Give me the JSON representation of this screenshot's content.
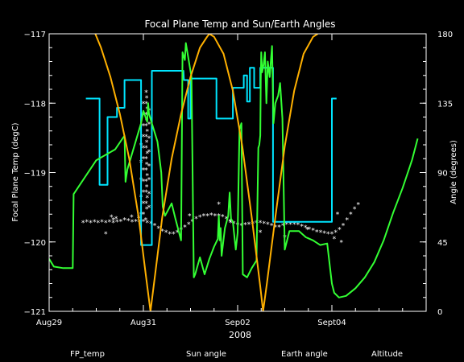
{
  "chart_data": {
    "type": "line",
    "title": "Focal Plane Temp and Sun/Earth Angles",
    "xlabel": "2008",
    "ylabel_left": "Focal Plane Temp (degC)",
    "ylabel_right": "Angle (degrees)",
    "x_unit": "days since Aug 29 00:00 (2008)",
    "xlim": [
      0,
      8
    ],
    "x_ticks": [
      {
        "x": 0,
        "label": "Aug29"
      },
      {
        "x": 2,
        "label": "Aug31"
      },
      {
        "x": 4,
        "label": "Sep02"
      },
      {
        "x": 6,
        "label": "Sept04"
      }
    ],
    "ylim_left": [
      -121,
      -117
    ],
    "y_ticks_left": [
      -121,
      -120,
      -119,
      -118,
      -117
    ],
    "ylim_right": [
      0,
      180
    ],
    "y_ticks_right": [
      0,
      45,
      90,
      135,
      180
    ],
    "grid": false,
    "legend_position": "bottom",
    "series": [
      {
        "name": "FP_temp",
        "color": "#ffffff",
        "axis": "left",
        "style": "markers",
        "points": [
          [
            0.72,
            -119.72
          ],
          [
            0.8,
            -119.71
          ],
          [
            0.88,
            -119.72
          ],
          [
            0.96,
            -119.71
          ],
          [
            1.04,
            -119.72
          ],
          [
            1.12,
            -119.71
          ],
          [
            1.2,
            -119.72
          ],
          [
            1.28,
            -119.71
          ],
          [
            1.36,
            -119.72
          ],
          [
            1.44,
            -119.71
          ],
          [
            1.52,
            -119.7
          ],
          [
            1.6,
            -119.68
          ],
          [
            1.68,
            -119.69
          ],
          [
            1.76,
            -119.71
          ],
          [
            1.84,
            -119.7
          ],
          [
            1.92,
            -119.71
          ],
          [
            2.0,
            -119.7
          ],
          [
            2.08,
            -119.72
          ],
          [
            2.16,
            -119.73
          ],
          [
            2.24,
            -119.76
          ],
          [
            2.32,
            -119.8
          ],
          [
            2.4,
            -119.84
          ],
          [
            2.48,
            -119.86
          ],
          [
            2.56,
            -119.88
          ],
          [
            2.64,
            -119.88
          ],
          [
            2.72,
            -119.86
          ],
          [
            2.8,
            -119.82
          ],
          [
            2.88,
            -119.78
          ],
          [
            2.96,
            -119.74
          ],
          [
            3.04,
            -119.7
          ],
          [
            3.12,
            -119.66
          ],
          [
            3.2,
            -119.64
          ],
          [
            3.28,
            -119.62
          ],
          [
            3.36,
            -119.62
          ],
          [
            3.44,
            -119.61
          ],
          [
            3.52,
            -119.62
          ],
          [
            3.6,
            -119.62
          ],
          [
            3.68,
            -119.63
          ],
          [
            3.76,
            -119.66
          ],
          [
            3.84,
            -119.7
          ],
          [
            3.92,
            -119.73
          ],
          [
            4.0,
            -119.75
          ],
          [
            4.08,
            -119.76
          ],
          [
            4.16,
            -119.75
          ],
          [
            4.24,
            -119.74
          ],
          [
            4.32,
            -119.73
          ],
          [
            4.4,
            -119.72
          ],
          [
            4.48,
            -119.72
          ],
          [
            4.56,
            -119.73
          ],
          [
            4.64,
            -119.74
          ],
          [
            4.72,
            -119.76
          ],
          [
            4.8,
            -119.78
          ],
          [
            4.88,
            -119.78
          ],
          [
            4.96,
            -119.76
          ],
          [
            5.04,
            -119.74
          ],
          [
            5.12,
            -119.74
          ],
          [
            5.2,
            -119.74
          ],
          [
            5.28,
            -119.75
          ],
          [
            5.36,
            -119.77
          ],
          [
            5.44,
            -119.79
          ],
          [
            5.52,
            -119.81
          ],
          [
            5.6,
            -119.83
          ],
          [
            5.68,
            -119.85
          ],
          [
            5.76,
            -119.86
          ],
          [
            5.84,
            -119.87
          ],
          [
            5.92,
            -119.88
          ],
          [
            6.0,
            -119.88
          ],
          [
            6.08,
            -119.86
          ],
          [
            6.16,
            -119.82
          ],
          [
            6.24,
            -119.76
          ],
          [
            6.32,
            -119.68
          ],
          [
            6.4,
            -119.6
          ],
          [
            6.48,
            -119.52
          ],
          [
            6.56,
            -119.46
          ],
          [
            1.32,
            -119.64
          ],
          [
            1.42,
            -119.66
          ],
          [
            1.75,
            -119.64
          ],
          [
            1.2,
            -119.88
          ],
          [
            1.36,
            -119.68
          ],
          [
            2.05,
            -119.68
          ],
          [
            1.9,
            -119.65
          ],
          [
            2.98,
            -119.62
          ],
          [
            3.6,
            -119.45
          ],
          [
            3.85,
            -119.72
          ],
          [
            4.48,
            -119.86
          ],
          [
            5.0,
            -119.93
          ],
          [
            5.48,
            -119.82
          ],
          [
            6.12,
            -119.6
          ],
          [
            6.05,
            -119.95
          ],
          [
            6.2,
            -120.0
          ],
          [
            2.06,
            -117.84
          ],
          [
            2.07,
            -117.92
          ],
          [
            2.06,
            -118.0
          ],
          [
            2.08,
            -118.08
          ],
          [
            2.06,
            -118.16
          ],
          [
            2.07,
            -118.24
          ],
          [
            2.06,
            -118.32
          ],
          [
            2.08,
            -118.4
          ],
          [
            2.06,
            -118.48
          ],
          [
            2.07,
            -118.56
          ],
          [
            2.06,
            -118.64
          ],
          [
            2.08,
            -118.72
          ],
          [
            2.06,
            -118.8
          ],
          [
            2.07,
            -118.88
          ],
          [
            2.06,
            -118.96
          ],
          [
            2.08,
            -119.04
          ],
          [
            2.06,
            -119.12
          ],
          [
            2.07,
            -119.2
          ],
          [
            2.06,
            -119.28
          ],
          [
            2.08,
            -119.36
          ],
          [
            2.06,
            -119.44
          ],
          [
            2.07,
            -119.52
          ],
          [
            2.0,
            -118.0
          ],
          [
            2.0,
            -118.16
          ],
          [
            2.0,
            -118.32
          ],
          [
            2.0,
            -118.48
          ],
          [
            2.0,
            -118.64
          ],
          [
            2.0,
            -118.8
          ],
          [
            2.0,
            -118.96
          ],
          [
            2.0,
            -119.12
          ],
          [
            2.0,
            -119.28
          ],
          [
            2.0,
            -119.44
          ],
          [
            2.0,
            -119.6
          ],
          [
            2.12,
            -118.1
          ],
          [
            2.12,
            -118.3
          ],
          [
            2.12,
            -118.5
          ],
          [
            2.12,
            -118.7
          ],
          [
            2.12,
            -118.9
          ],
          [
            2.12,
            -119.1
          ],
          [
            2.12,
            -119.3
          ],
          [
            2.12,
            -119.5
          ],
          [
            1.95,
            -118.6
          ],
          [
            1.95,
            -118.85
          ],
          [
            1.95,
            -119.1
          ],
          [
            1.95,
            -119.35
          ],
          [
            1.95,
            -119.6
          ]
        ]
      },
      {
        "name": "Sun angle",
        "color": "#00e5ff",
        "axis": "right",
        "style": "line",
        "points": [
          [
            0.78,
            138
          ],
          [
            1.07,
            138
          ],
          [
            1.07,
            82
          ],
          [
            1.24,
            82
          ],
          [
            1.24,
            126
          ],
          [
            1.44,
            126
          ],
          [
            1.44,
            132
          ],
          [
            1.6,
            132
          ],
          [
            1.6,
            150
          ],
          [
            1.95,
            150
          ],
          [
            1.95,
            43
          ],
          [
            2.18,
            43
          ],
          [
            2.18,
            156
          ],
          [
            2.53,
            156
          ],
          [
            2.53,
            156
          ],
          [
            2.85,
            156
          ],
          [
            2.86,
            150
          ],
          [
            2.95,
            150
          ],
          [
            2.95,
            125
          ],
          [
            3.0,
            125
          ],
          [
            3.0,
            151
          ],
          [
            3.55,
            151
          ],
          [
            3.55,
            125
          ],
          [
            3.9,
            125
          ],
          [
            3.9,
            145
          ],
          [
            4.02,
            145
          ],
          [
            4.02,
            145
          ],
          [
            4.13,
            145
          ],
          [
            4.13,
            153
          ],
          [
            4.2,
            153
          ],
          [
            4.2,
            136
          ],
          [
            4.26,
            136
          ],
          [
            4.26,
            158
          ],
          [
            4.35,
            158
          ],
          [
            4.35,
            145
          ],
          [
            4.48,
            145
          ],
          [
            4.48,
            158
          ],
          [
            4.75,
            158
          ],
          [
            4.75,
            58
          ],
          [
            5.85,
            58
          ],
          [
            5.85,
            58
          ],
          [
            6.0,
            58
          ],
          [
            6.0,
            138
          ],
          [
            6.1,
            138
          ]
        ]
      },
      {
        "name": "Earth angle",
        "color": "#33ff33",
        "axis": "right",
        "style": "line",
        "points": [
          [
            0.0,
            34
          ],
          [
            0.1,
            29
          ],
          [
            0.3,
            28
          ],
          [
            0.5,
            28
          ],
          [
            0.52,
            76
          ],
          [
            1.0,
            98
          ],
          [
            1.4,
            105
          ],
          [
            1.6,
            114
          ],
          [
            1.62,
            84
          ],
          [
            1.66,
            92
          ],
          [
            1.95,
            122
          ],
          [
            2.0,
            130
          ],
          [
            2.08,
            123
          ],
          [
            2.1,
            135
          ],
          [
            2.12,
            128
          ],
          [
            2.3,
            110
          ],
          [
            2.38,
            90
          ],
          [
            2.41,
            68
          ],
          [
            2.46,
            62
          ],
          [
            2.6,
            70
          ],
          [
            2.68,
            60
          ],
          [
            2.8,
            46
          ],
          [
            2.83,
            168
          ],
          [
            2.88,
            163
          ],
          [
            2.9,
            174
          ],
          [
            3.02,
            152
          ],
          [
            3.07,
            22
          ],
          [
            3.1,
            24
          ],
          [
            3.2,
            35
          ],
          [
            3.3,
            24
          ],
          [
            3.4,
            34
          ],
          [
            3.5,
            42
          ],
          [
            3.58,
            47
          ],
          [
            3.6,
            62
          ],
          [
            3.62,
            46
          ],
          [
            3.64,
            54
          ],
          [
            3.66,
            36
          ],
          [
            3.73,
            54
          ],
          [
            3.8,
            62
          ],
          [
            3.83,
            77
          ],
          [
            3.86,
            60
          ],
          [
            3.9,
            58
          ],
          [
            3.96,
            40
          ],
          [
            4.0,
            51
          ],
          [
            4.04,
            118
          ],
          [
            4.08,
            122
          ],
          [
            4.11,
            24
          ],
          [
            4.2,
            22
          ],
          [
            4.3,
            28
          ],
          [
            4.4,
            33
          ],
          [
            4.44,
            106
          ],
          [
            4.46,
            108
          ],
          [
            4.48,
            114
          ],
          [
            4.49,
            150
          ],
          [
            4.5,
            168
          ],
          [
            4.52,
            155
          ],
          [
            4.55,
            160
          ],
          [
            4.58,
            168
          ],
          [
            4.61,
            135
          ],
          [
            4.64,
            162
          ],
          [
            4.68,
            152
          ],
          [
            4.7,
            160
          ],
          [
            4.73,
            172
          ],
          [
            4.76,
            122
          ],
          [
            4.8,
            135
          ],
          [
            4.86,
            140
          ],
          [
            4.9,
            148
          ],
          [
            4.95,
            125
          ],
          [
            5.0,
            40
          ],
          [
            5.1,
            52
          ],
          [
            5.3,
            52
          ],
          [
            5.45,
            48
          ],
          [
            5.6,
            46
          ],
          [
            5.75,
            43
          ],
          [
            5.9,
            44
          ],
          [
            6.0,
            18
          ],
          [
            6.05,
            12
          ],
          [
            6.15,
            9
          ],
          [
            6.3,
            10
          ],
          [
            6.5,
            15
          ],
          [
            6.7,
            22
          ],
          [
            6.9,
            32
          ],
          [
            7.1,
            46
          ],
          [
            7.3,
            64
          ],
          [
            7.5,
            80
          ],
          [
            7.7,
            98
          ],
          [
            7.82,
            112
          ]
        ]
      },
      {
        "name": "Altitude",
        "color": "#ffb000",
        "axis": "right",
        "style": "line",
        "points": [
          [
            0.98,
            180
          ],
          [
            1.1,
            171
          ],
          [
            1.3,
            152
          ],
          [
            1.5,
            128
          ],
          [
            1.7,
            99
          ],
          [
            1.9,
            61
          ],
          [
            2.05,
            24
          ],
          [
            2.15,
            0
          ],
          [
            2.25,
            24
          ],
          [
            2.4,
            61
          ],
          [
            2.6,
            99
          ],
          [
            2.8,
            128
          ],
          [
            3.0,
            152
          ],
          [
            3.2,
            171
          ],
          [
            3.35,
            178
          ],
          [
            3.4,
            180
          ],
          [
            3.5,
            178
          ],
          [
            3.7,
            167
          ],
          [
            3.9,
            143
          ],
          [
            4.1,
            107
          ],
          [
            4.3,
            61
          ],
          [
            4.48,
            16
          ],
          [
            4.54,
            0
          ],
          [
            4.62,
            18
          ],
          [
            4.8,
            61
          ],
          [
            5.0,
            107
          ],
          [
            5.2,
            143
          ],
          [
            5.4,
            167
          ],
          [
            5.6,
            178
          ],
          [
            5.7,
            180
          ]
        ]
      }
    ]
  }
}
